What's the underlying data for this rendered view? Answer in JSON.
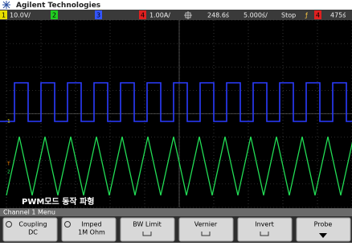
{
  "header": {
    "brand": "Agilent Technologies"
  },
  "status_bar": {
    "ch1": "1",
    "ch1_scale": "10.0V/",
    "ch2": "2",
    "ch3": "3",
    "ch4": "4",
    "ch4_scale": "1.00A/",
    "delay": "248.6ś",
    "timebase": "5.000ś/",
    "run_state": "Stop",
    "trigger_slope": "ƒ",
    "trigger_source": "4",
    "trigger_level": "475ś"
  },
  "screen": {
    "markers": [
      "1",
      "T",
      "2"
    ],
    "annotation": "PWM모드 동작 파형"
  },
  "menu": {
    "title": "Channel 1  Menu",
    "buttons": [
      {
        "label": "Coupling",
        "value": "DC"
      },
      {
        "label": "Imped",
        "value": "1M Ohm"
      },
      {
        "label": "BW Limit"
      },
      {
        "label": "Vernier"
      },
      {
        "label": "Invert"
      },
      {
        "label": "Probe"
      }
    ]
  }
}
